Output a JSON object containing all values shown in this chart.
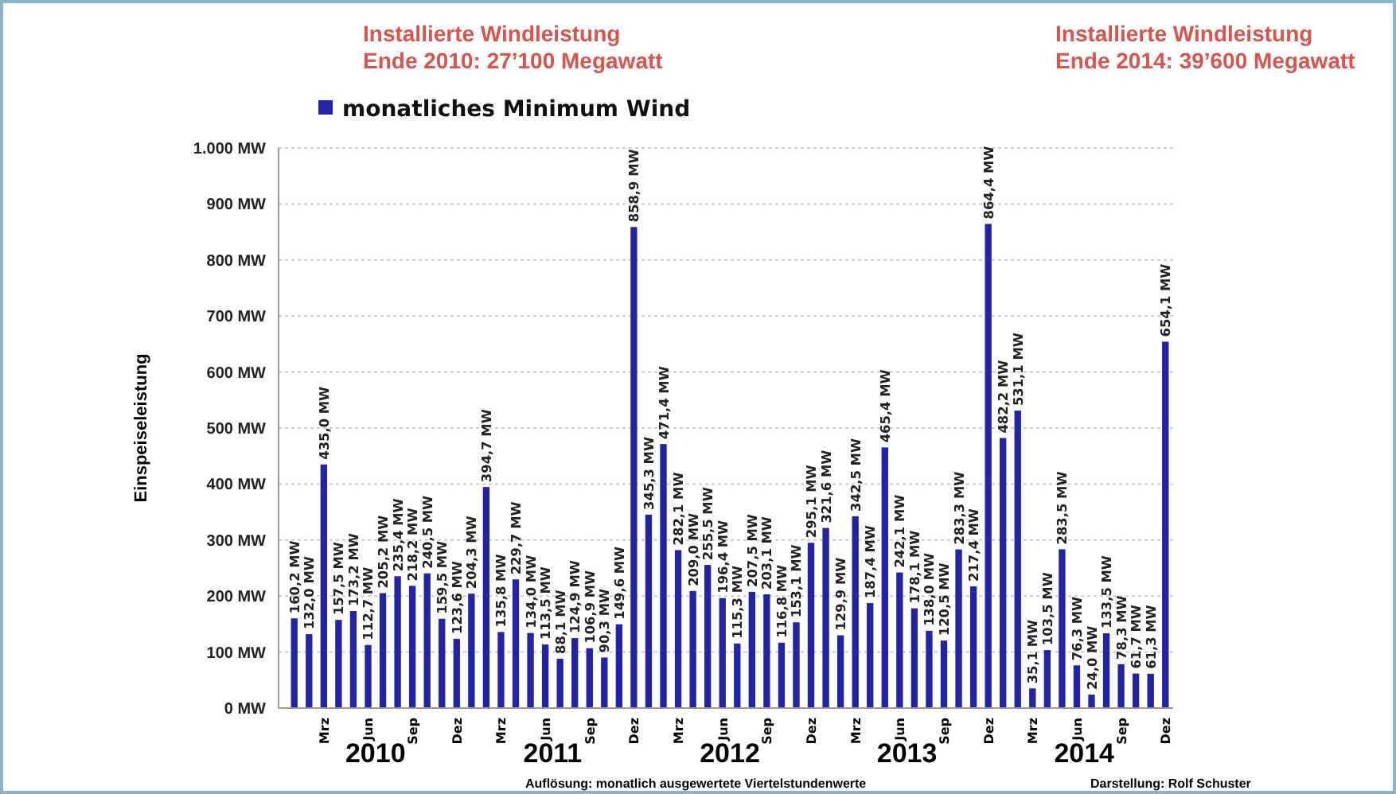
{
  "chart_data": {
    "type": "bar",
    "ylabel": "Einspeiseleistung",
    "categories": [
      null,
      null,
      "Mrz",
      null,
      null,
      "Jun",
      null,
      null,
      "Sep",
      null,
      null,
      "Dez",
      null,
      null,
      "Mrz",
      null,
      null,
      "Jun",
      null,
      null,
      "Sep",
      null,
      null,
      "Dez",
      null,
      null,
      "Mrz",
      null,
      null,
      "Jun",
      null,
      null,
      "Sep",
      null,
      null,
      "Dez",
      null,
      null,
      "Mrz",
      null,
      null,
      "Jun",
      null,
      null,
      "Sep",
      null,
      null,
      "Dez",
      null,
      null,
      "Mrz",
      null,
      null,
      "Jun",
      null,
      null,
      "Sep",
      null,
      null,
      "Dez"
    ],
    "series": [
      {
        "name": "monatliches Minimum Wind",
        "color": "#2323a6",
        "values": [
          160.2,
          132.0,
          435.0,
          157.5,
          173.2,
          112.7,
          205.2,
          235.4,
          218.2,
          240.5,
          159.5,
          123.6,
          204.3,
          394.7,
          135.8,
          229.7,
          134.0,
          113.5,
          88.1,
          124.9,
          106.9,
          90.3,
          149.6,
          858.9,
          345.3,
          471.4,
          282.1,
          209.0,
          255.5,
          196.4,
          115.3,
          207.5,
          203.1,
          116.8,
          153.1,
          295.1,
          321.6,
          129.9,
          342.5,
          187.4,
          465.4,
          242.1,
          178.1,
          138.0,
          120.5,
          283.3,
          217.4,
          864.4,
          482.2,
          531.1,
          35.1,
          103.5,
          283.5,
          76.3,
          24.0,
          133.5,
          78.3,
          61.7,
          61.3,
          654.1
        ],
        "value_labels": [
          "160,2 MW",
          "132,0 MW",
          "435,0 MW",
          "157,5 MW",
          "173,2 MW",
          "112,7 MW",
          "205,2 MW",
          "235,4 MW",
          "218,2 MW",
          "240,5 MW",
          "159,5 MW",
          "123,6 MW",
          "204,3 MW",
          "394,7 MW",
          "135,8 MW",
          "229,7 MW",
          "134,0 MW",
          "113,5 MW",
          "88,1 MW",
          "124,9 MW",
          "106,9 MW",
          "90,3 MW",
          "149,6 MW",
          "858,9 MW",
          "345,3 MW",
          "471,4 MW",
          "282,1 MW",
          "209,0 MW",
          "255,5 MW",
          "196,4 MW",
          "115,3 MW",
          "207,5 MW",
          "203,1 MW",
          "116,8 MW",
          "153,1 MW",
          "295,1 MW",
          "321,6 MW",
          "129,9 MW",
          "342,5 MW",
          "187,4 MW",
          "465,4 MW",
          "242,1 MW",
          "178,1 MW",
          "138,0 MW",
          "120,5 MW",
          "283,3 MW",
          "217,4 MW",
          "864,4 MW",
          "482,2 MW",
          "531,1 MW",
          "35,1 MW",
          "103,5 MW",
          "283,5 MW",
          "76,3 MW",
          "24,0 MW",
          "133,5 MW",
          "78,3 MW",
          "61,7 MW",
          "61,3 MW",
          "654,1 MW"
        ]
      }
    ],
    "ylim": [
      0,
      1000
    ],
    "yticks": [
      {
        "value": 0,
        "label": "0 MW"
      },
      {
        "value": 100,
        "label": "100 MW"
      },
      {
        "value": 200,
        "label": "200 MW"
      },
      {
        "value": 300,
        "label": "300 MW"
      },
      {
        "value": 400,
        "label": "400 MW"
      },
      {
        "value": 500,
        "label": "500 MW"
      },
      {
        "value": 600,
        "label": "600 MW"
      },
      {
        "value": 700,
        "label": "700 MW"
      },
      {
        "value": 800,
        "label": "800 MW"
      },
      {
        "value": 900,
        "label": "900 MW"
      },
      {
        "value": 1000,
        "label": "1.000 MW"
      }
    ],
    "grid": "y",
    "legend": "top left",
    "annotations": [
      "Installierte Windleistung\nEnde 2010: 27’100 Megawatt",
      "Installierte Windleistung\nEnde 2014: 39’600 Megawatt",
      "2010",
      "2011",
      "2012",
      "2013",
      "2014",
      "Auflösung: monatlich ausgewertete Viertelstundenwerte",
      "Darstellung: Rolf Schuster"
    ]
  }
}
